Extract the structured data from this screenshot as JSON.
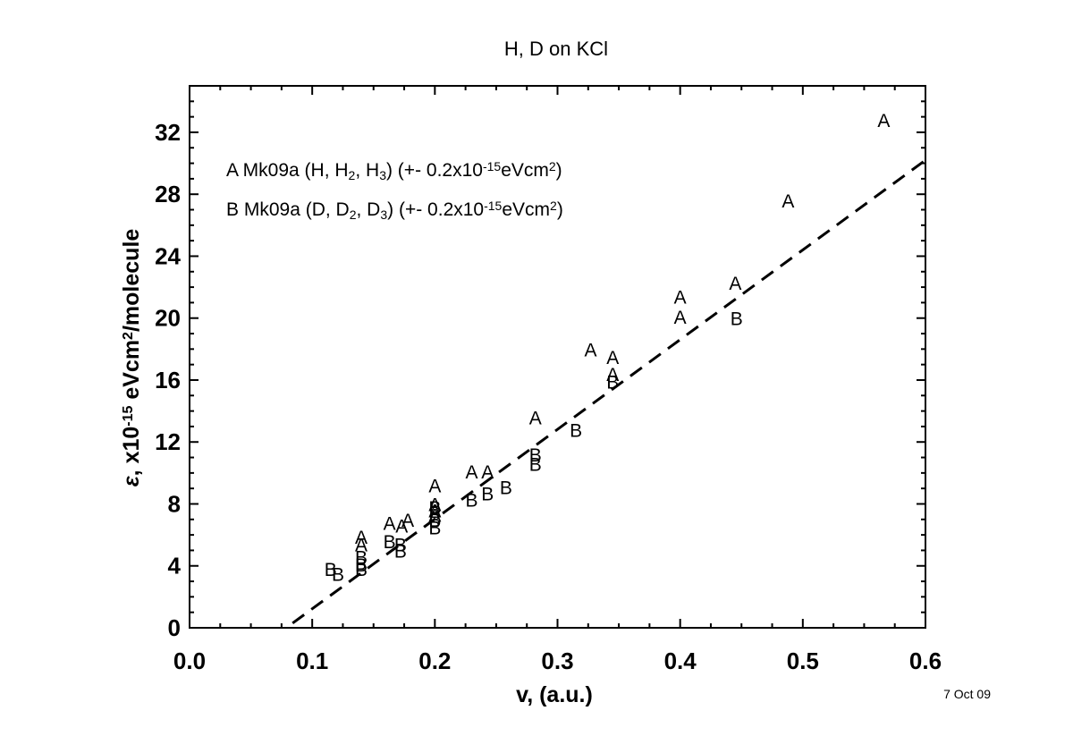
{
  "chart_data": {
    "type": "scatter",
    "title": "H, D on KCl",
    "xlabel": "v, (a.u.)",
    "ylabel": {
      "prefix": "ε, x10",
      "exp": "-15",
      "mid": " eVcm",
      "exp2": "2",
      "suffix": "/molecule"
    },
    "xlim": [
      0,
      0.6
    ],
    "ylim": [
      0,
      35
    ],
    "x_ticks": [
      "0.0",
      "0.1",
      "0.2",
      "0.3",
      "0.4",
      "0.5",
      "0.6"
    ],
    "y_ticks": [
      "0",
      "4",
      "8",
      "12",
      "16",
      "20",
      "24",
      "28",
      "32"
    ],
    "date_label": "7 Oct 09",
    "legend": [
      {
        "marker": "A",
        "parts": [
          {
            "t": "A Mk09a (H, H"
          },
          {
            "t": "2",
            "sub": true
          },
          {
            "t": ", H"
          },
          {
            "t": "3",
            "sub": true
          },
          {
            "t": ") (+- 0.2x10"
          },
          {
            "t": "-15",
            "sup": true
          },
          {
            "t": "eVcm"
          },
          {
            "t": "2",
            "sup": true
          },
          {
            "t": ")"
          }
        ]
      },
      {
        "marker": "B",
        "parts": [
          {
            "t": "B Mk09a (D, D"
          },
          {
            "t": "2",
            "sub": true
          },
          {
            "t": ", D"
          },
          {
            "t": "3",
            "sub": true
          },
          {
            "t": ") (+- 0.2x10"
          },
          {
            "t": "-15",
            "sup": true
          },
          {
            "t": "eVcm"
          },
          {
            "t": "2",
            "sup": true
          },
          {
            "t": ")"
          }
        ]
      }
    ],
    "series": [
      {
        "marker": "A",
        "points": [
          [
            0.14,
            5.9
          ],
          [
            0.14,
            5.4
          ],
          [
            0.163,
            6.8
          ],
          [
            0.173,
            6.6
          ],
          [
            0.178,
            7.0
          ],
          [
            0.2,
            9.2
          ],
          [
            0.2,
            8.0
          ],
          [
            0.2,
            7.6
          ],
          [
            0.2,
            7.3
          ],
          [
            0.23,
            10.1
          ],
          [
            0.243,
            10.1
          ],
          [
            0.282,
            13.6
          ],
          [
            0.327,
            18.0
          ],
          [
            0.345,
            17.5
          ],
          [
            0.345,
            16.4
          ],
          [
            0.4,
            21.4
          ],
          [
            0.4,
            20.1
          ],
          [
            0.445,
            22.3
          ],
          [
            0.488,
            27.6
          ],
          [
            0.566,
            32.8
          ]
        ]
      },
      {
        "marker": "B",
        "points": [
          [
            0.115,
            3.8
          ],
          [
            0.121,
            3.5
          ],
          [
            0.14,
            4.6
          ],
          [
            0.14,
            4.1
          ],
          [
            0.14,
            3.8
          ],
          [
            0.163,
            5.6
          ],
          [
            0.172,
            5.4
          ],
          [
            0.172,
            5.0
          ],
          [
            0.2,
            7.8
          ],
          [
            0.2,
            7.0
          ],
          [
            0.2,
            6.5
          ],
          [
            0.23,
            8.3
          ],
          [
            0.243,
            8.7
          ],
          [
            0.258,
            9.1
          ],
          [
            0.282,
            11.2
          ],
          [
            0.282,
            10.6
          ],
          [
            0.315,
            12.8
          ],
          [
            0.345,
            15.9
          ],
          [
            0.446,
            20.0
          ]
        ]
      }
    ],
    "fit_line": {
      "style": "dashed",
      "points": [
        [
          0.084,
          0.3
        ],
        [
          0.6,
          30.2
        ]
      ]
    },
    "grid": false
  }
}
